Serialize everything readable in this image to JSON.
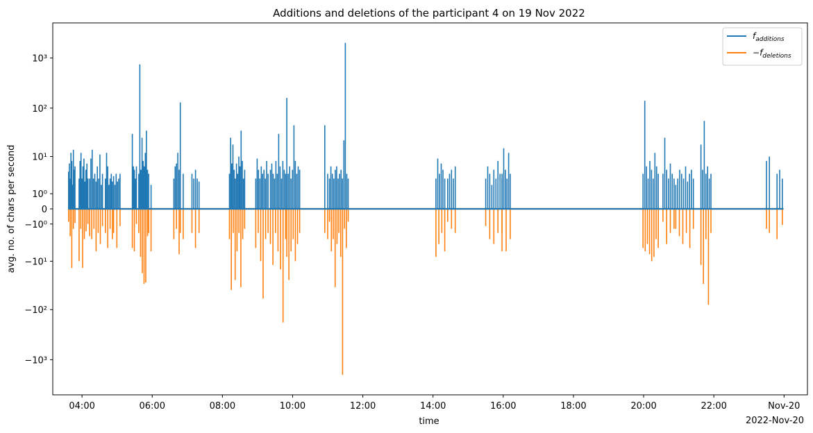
{
  "chart_data": {
    "type": "line",
    "title": "Additions and deletions of the participant 4 on 19 Nov 2022",
    "xlabel": "time",
    "ylabel": "avg. no. of chars per second",
    "yscale": "symlog",
    "ylim": [
      -5000,
      5000
    ],
    "xlim": [
      "2022-11-19T03:10",
      "2022-11-20T00:40"
    ],
    "x_ticks": [
      {
        "t": "2022-11-19T04:00",
        "label": "04:00"
      },
      {
        "t": "2022-11-19T06:00",
        "label": "06:00"
      },
      {
        "t": "2022-11-19T08:00",
        "label": "08:00"
      },
      {
        "t": "2022-11-19T10:00",
        "label": "10:00"
      },
      {
        "t": "2022-11-19T12:00",
        "label": "12:00"
      },
      {
        "t": "2022-11-19T14:00",
        "label": "14:00"
      },
      {
        "t": "2022-11-19T16:00",
        "label": "16:00"
      },
      {
        "t": "2022-11-19T18:00",
        "label": "18:00"
      },
      {
        "t": "2022-11-19T20:00",
        "label": "20:00"
      },
      {
        "t": "2022-11-19T22:00",
        "label": "22:00"
      },
      {
        "t": "2022-11-20T00:00",
        "label": "Nov-20"
      }
    ],
    "x_offset_label": "2022-Nov-20",
    "y_ticks": [
      {
        "v": 1000,
        "label": "10³"
      },
      {
        "v": 100,
        "label": "10²"
      },
      {
        "v": 10,
        "label": "10¹"
      },
      {
        "v": 1,
        "label": "10⁰"
      },
      {
        "v": 0,
        "label": "0"
      },
      {
        "v": -1,
        "label": "−10⁰"
      },
      {
        "v": -10,
        "label": "−10¹"
      },
      {
        "v": -100,
        "label": "−10²"
      },
      {
        "v": -1000,
        "label": "−10³"
      }
    ],
    "legend": {
      "placement": "top-right"
    },
    "series": [
      {
        "name": "f_additions",
        "legend_main": "f",
        "legend_sub": "additions",
        "legend_prefix": "",
        "color": "#1f77b4",
        "bursts": [
          {
            "start": "03:37",
            "end": "03:48",
            "values": [
              4.5,
              7,
              3,
              12,
              8,
              2,
              14,
              5,
              6
            ]
          },
          {
            "start": "03:55",
            "end": "04:10",
            "values": [
              3,
              8,
              12,
              3,
              6,
              9,
              2.5,
              5,
              7,
              3
            ]
          },
          {
            "start": "04:13",
            "end": "04:35",
            "values": [
              3,
              9,
              14,
              3,
              4,
              2.5,
              6,
              3,
              11,
              2,
              4
            ]
          },
          {
            "start": "04:40",
            "end": "04:52",
            "values": [
              3,
              12,
              6,
              2,
              3,
              4,
              2.5
            ]
          },
          {
            "start": "04:54",
            "end": "05:05",
            "values": [
              3.5,
              2,
              4,
              2.5,
              3,
              4
            ]
          },
          {
            "start": "05:26",
            "end": "05:33",
            "values": [
              30,
              6,
              5,
              3,
              6
            ]
          },
          {
            "start": "05:37",
            "end": "05:52",
            "values": [
              4,
              750,
              5,
              25,
              8,
              6,
              12,
              35,
              5
            ]
          },
          {
            "start": "05:54",
            "end": "05:58",
            "values": [
              4,
              2
            ]
          },
          {
            "start": "06:37",
            "end": "06:46",
            "values": [
              3,
              6,
              7,
              12,
              5
            ]
          },
          {
            "start": "06:48",
            "end": "06:53",
            "values": [
              130,
              4
            ]
          },
          {
            "start": "07:08",
            "end": "07:20",
            "values": [
              4,
              3,
              5,
              3,
              2.5
            ]
          },
          {
            "start": "08:12",
            "end": "08:38",
            "values": [
              4,
              25,
              7,
              18,
              5,
              3,
              7,
              4,
              10,
              6,
              35,
              8,
              3,
              5
            ]
          },
          {
            "start": "08:57",
            "end": "09:18",
            "values": [
              3,
              9,
              5,
              3,
              6,
              4,
              5,
              3,
              8,
              4
            ]
          },
          {
            "start": "09:22",
            "end": "09:48",
            "values": [
              5,
              7,
              4,
              3,
              8,
              4,
              30,
              6,
              3,
              8,
              5,
              4
            ]
          },
          {
            "start": "09:50",
            "end": "10:12",
            "values": [
              160,
              4,
              6,
              3,
              5,
              45,
              8,
              4,
              6,
              5
            ]
          },
          {
            "start": "10:55",
            "end": "11:00",
            "values": [
              45,
              4
            ]
          },
          {
            "start": "11:03",
            "end": "11:35",
            "values": [
              3,
              6,
              4,
              3,
              5,
              6,
              3,
              4,
              5,
              3,
              22,
              2000,
              4,
              3
            ]
          },
          {
            "start": "14:05",
            "end": "14:20",
            "values": [
              3,
              9,
              4,
              7,
              5,
              3
            ]
          },
          {
            "start": "14:25",
            "end": "14:38",
            "values": [
              3,
              4,
              5,
              3,
              6
            ]
          },
          {
            "start": "15:30",
            "end": "15:58",
            "values": [
              3,
              6,
              4,
              2,
              5,
              3,
              8,
              4,
              3
            ]
          },
          {
            "start": "15:58",
            "end": "16:12",
            "values": [
              4,
              15,
              5,
              3,
              12,
              4
            ]
          },
          {
            "start": "19:59",
            "end": "20:25",
            "values": [
              4,
              140,
              6,
              3,
              8,
              5,
              3,
              12,
              6,
              4
            ]
          },
          {
            "start": "20:33",
            "end": "20:52",
            "values": [
              4,
              25,
              5,
              3,
              7,
              4,
              3
            ]
          },
          {
            "start": "20:55",
            "end": "21:25",
            "values": [
              2,
              3,
              5,
              4,
              3,
              6,
              2.5,
              4,
              5,
              3
            ]
          },
          {
            "start": "21:38",
            "end": "21:55",
            "values": [
              18,
              5,
              55,
              4,
              6,
              3,
              4
            ]
          },
          {
            "start": "23:30",
            "end": "23:35",
            "values": [
              8,
              10
            ]
          },
          {
            "start": "23:48",
            "end": "23:57",
            "values": [
              4,
              5,
              3
            ]
          }
        ]
      },
      {
        "name": "−f_deletions",
        "legend_main": "f",
        "legend_sub": "deletions",
        "legend_prefix": "−",
        "color": "#ff7f0e",
        "bursts": [
          {
            "start": "03:37",
            "end": "03:48",
            "values": [
              -0.8,
              -2.5,
              -14,
              -1.5,
              -0.9
            ]
          },
          {
            "start": "03:55",
            "end": "04:10",
            "values": [
              -10,
              -1.5,
              -14,
              -3,
              -1.8,
              -1
            ]
          },
          {
            "start": "04:13",
            "end": "04:35",
            "values": [
              -2.5,
              -3,
              -1.5,
              -6,
              -2,
              -4,
              -1.2
            ]
          },
          {
            "start": "04:40",
            "end": "04:52",
            "values": [
              -2,
              -5,
              -1.5,
              -3
            ]
          },
          {
            "start": "04:54",
            "end": "05:05",
            "values": [
              -2,
              -5,
              -1.2
            ]
          },
          {
            "start": "05:26",
            "end": "05:33",
            "values": [
              -5,
              -6,
              -1
            ]
          },
          {
            "start": "05:37",
            "end": "05:52",
            "values": [
              -2,
              -8,
              -18,
              -30,
              -28,
              -2.5
            ]
          },
          {
            "start": "05:54",
            "end": "05:58",
            "values": [
              -2,
              -6
            ]
          },
          {
            "start": "06:37",
            "end": "06:46",
            "values": [
              -3,
              -1.5,
              -7
            ]
          },
          {
            "start": "06:48",
            "end": "06:53",
            "values": [
              -2,
              -3
            ]
          },
          {
            "start": "07:08",
            "end": "07:20",
            "values": [
              -2,
              -5,
              -2
            ]
          },
          {
            "start": "08:12",
            "end": "08:38",
            "values": [
              -3,
              -40,
              -2,
              -25,
              -6,
              -2,
              -35,
              -3,
              -1.5
            ]
          },
          {
            "start": "08:57",
            "end": "09:18",
            "values": [
              -5,
              -2,
              -10,
              -60,
              -3,
              -2
            ]
          },
          {
            "start": "09:22",
            "end": "09:48",
            "values": [
              -4,
              -12,
              -2,
              -6,
              -15,
              -180,
              -3
            ]
          },
          {
            "start": "09:50",
            "end": "10:12",
            "values": [
              -8,
              -25,
              -6,
              -3,
              -10,
              -4,
              -2
            ]
          },
          {
            "start": "10:55",
            "end": "11:00",
            "values": [
              -2,
              -3
            ]
          },
          {
            "start": "11:03",
            "end": "11:35",
            "values": [
              -0.8,
              -6,
              -3,
              -35,
              -4,
              -2,
              -8,
              -2000,
              -1.5,
              -5,
              -0.8
            ]
          },
          {
            "start": "14:05",
            "end": "14:20",
            "values": [
              -8,
              -4,
              -2,
              -6
            ]
          },
          {
            "start": "14:25",
            "end": "14:38",
            "values": [
              -0.8,
              -1.5,
              -2
            ]
          },
          {
            "start": "15:30",
            "end": "15:58",
            "values": [
              -1.2,
              -3,
              -4,
              -2,
              -6
            ]
          },
          {
            "start": "15:58",
            "end": "16:12",
            "values": [
              -2,
              -6,
              -3
            ]
          },
          {
            "start": "19:59",
            "end": "20:25",
            "values": [
              -5,
              -6,
              -4,
              -7,
              -10,
              -8,
              -3,
              -5
            ]
          },
          {
            "start": "20:33",
            "end": "20:52",
            "values": [
              -0.8,
              -4,
              -2,
              -1.5
            ]
          },
          {
            "start": "20:55",
            "end": "21:25",
            "values": [
              -1.5,
              -2.5,
              -4,
              -2,
              -5,
              -1.5
            ]
          },
          {
            "start": "21:38",
            "end": "21:55",
            "values": [
              -12,
              -30,
              -3,
              -80,
              -2
            ]
          },
          {
            "start": "23:30",
            "end": "23:35",
            "values": [
              -1.5,
              -2
            ]
          },
          {
            "start": "23:48",
            "end": "23:57",
            "values": [
              -3,
              -1.1
            ]
          }
        ]
      }
    ]
  }
}
